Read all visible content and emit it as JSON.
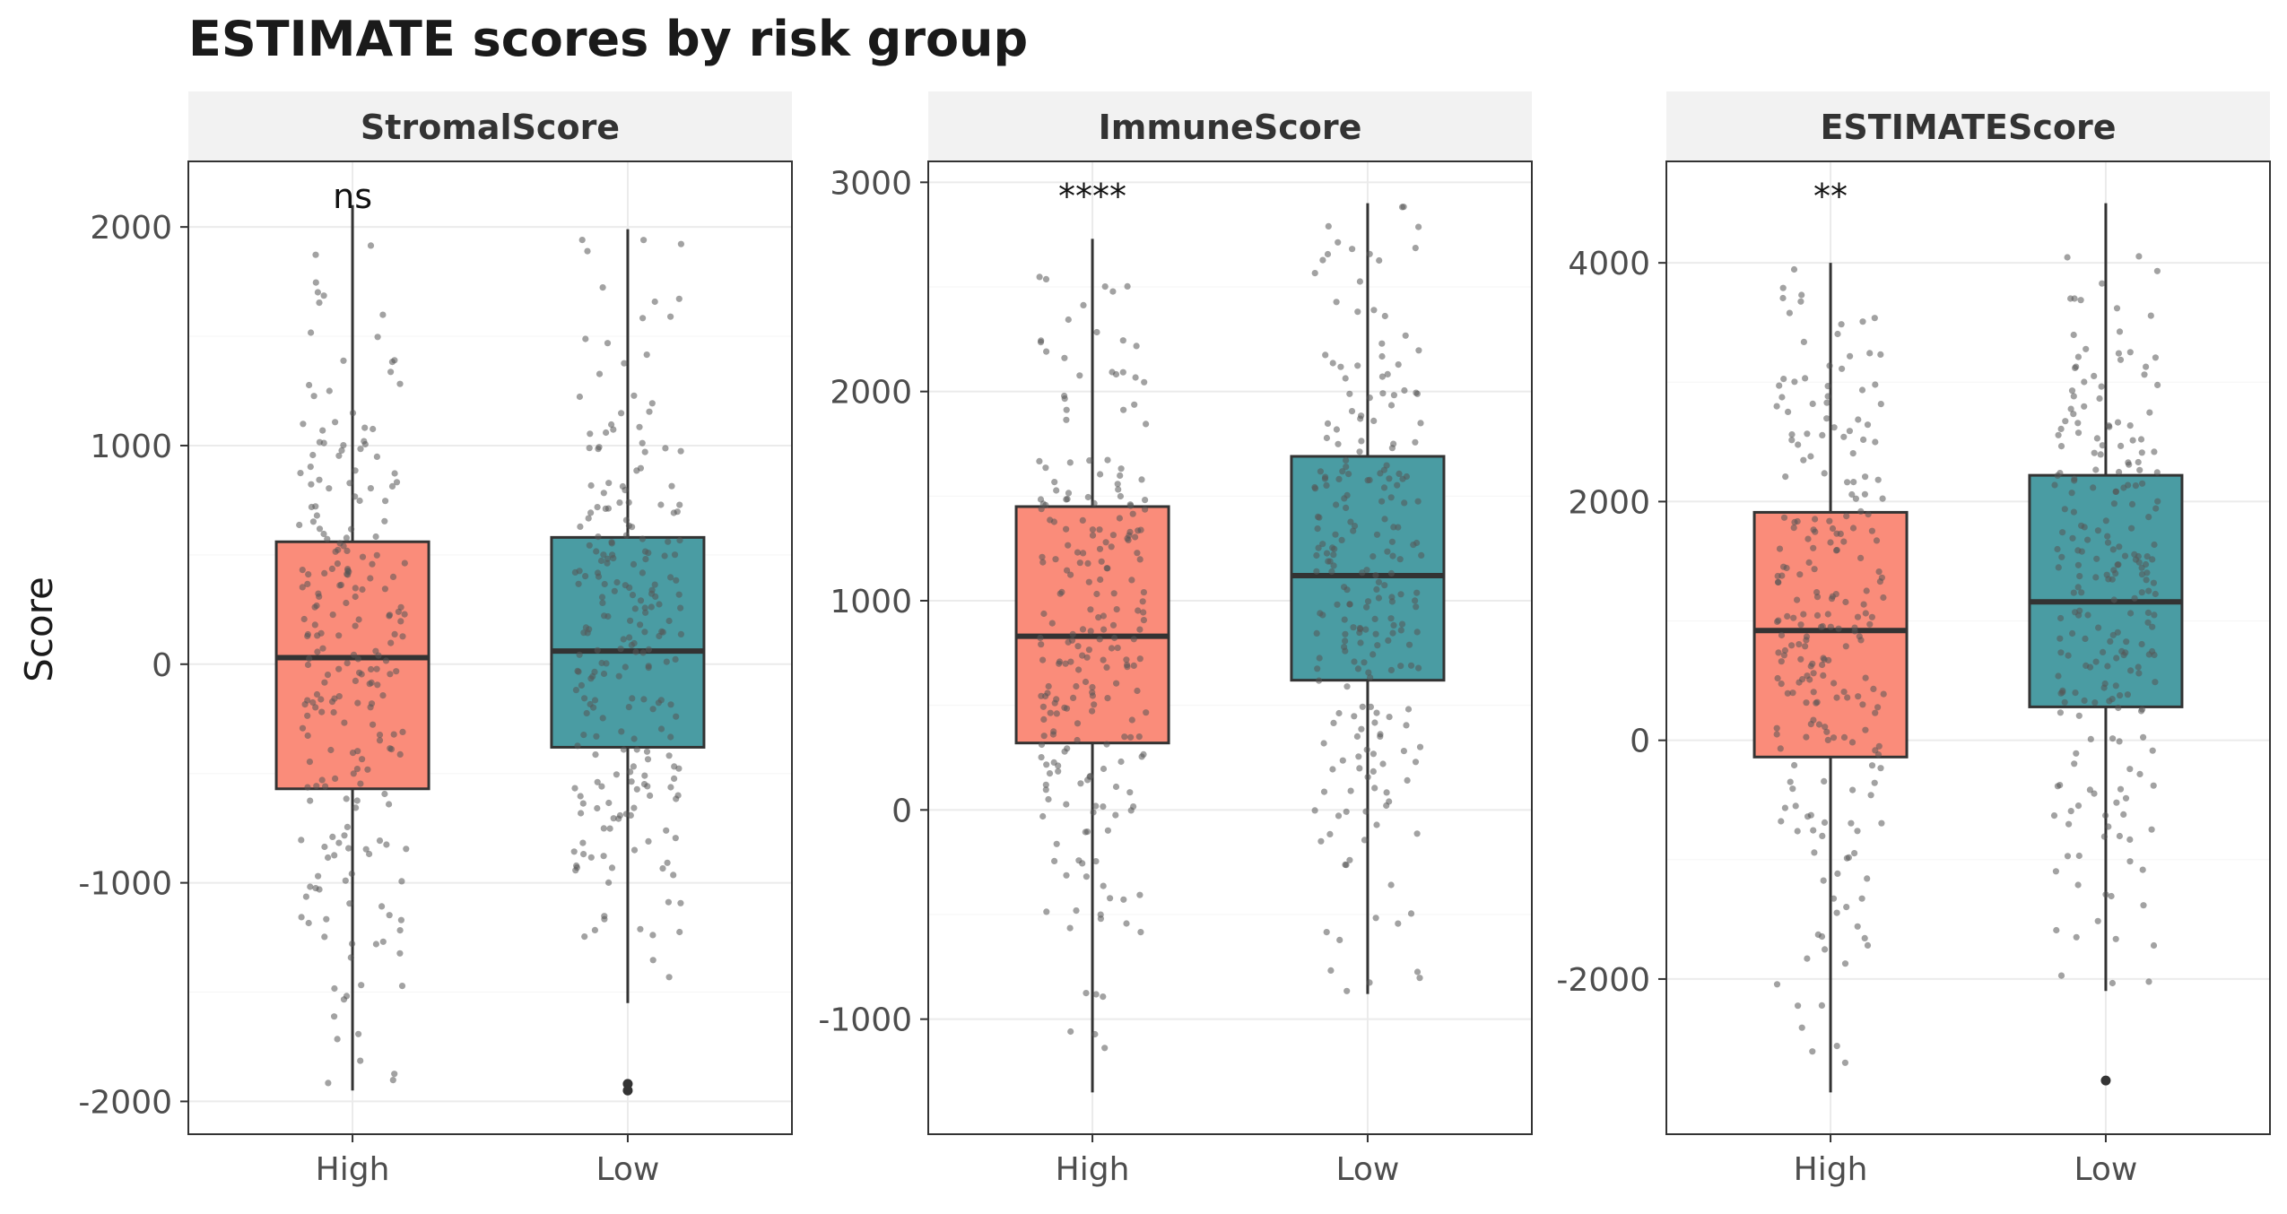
{
  "chart_data": {
    "type": "box",
    "title": "ESTIMATE scores by risk group",
    "ylabel": "Score",
    "xlabel": "",
    "categories": [
      "High",
      "Low"
    ],
    "colors": {
      "High": "#FA8C7A",
      "Low": "#4A9CA3",
      "point": "#555555",
      "outlier": "#333333",
      "strip_bg": "#F2F2F2",
      "panel_border": "#333333",
      "grid": "#EBEBEB"
    },
    "grid": true,
    "jitter_points": true,
    "panels": [
      {
        "name": "StromalScore",
        "significance": "ns",
        "ylim": [
          -2150,
          2300
        ],
        "yticks": [
          -2000,
          -1000,
          0,
          1000,
          2000
        ],
        "ytick_labels": [
          "-2000",
          "-1000",
          "0",
          "1000",
          "2000"
        ],
        "boxes": [
          {
            "group": "High",
            "whisker_low": -1950,
            "q1": -570,
            "median": 30,
            "q3": 560,
            "whisker_high": 2100,
            "outliers": []
          },
          {
            "group": "Low",
            "whisker_low": -1550,
            "q1": -380,
            "median": 60,
            "q3": 580,
            "whisker_high": 1990,
            "outliers": [
              -1920,
              -1950
            ]
          }
        ]
      },
      {
        "name": "ImmuneScore",
        "significance": "****",
        "ylim": [
          -1550,
          3100
        ],
        "yticks": [
          -1000,
          0,
          1000,
          2000,
          3000
        ],
        "ytick_labels": [
          "-1000",
          "0",
          "1000",
          "2000",
          "3000"
        ],
        "boxes": [
          {
            "group": "High",
            "whisker_low": -1350,
            "q1": 320,
            "median": 830,
            "q3": 1450,
            "whisker_high": 2730,
            "outliers": []
          },
          {
            "group": "Low",
            "whisker_low": -880,
            "q1": 620,
            "median": 1120,
            "q3": 1690,
            "whisker_high": 2900,
            "outliers": []
          }
        ]
      },
      {
        "name": "ESTIMATEScore",
        "significance": "**",
        "ylim": [
          -3300,
          4850
        ],
        "yticks": [
          -2000,
          0,
          2000,
          4000
        ],
        "ytick_labels": [
          "-2000",
          "0",
          "2000",
          "4000"
        ],
        "boxes": [
          {
            "group": "High",
            "whisker_low": -2950,
            "q1": -140,
            "median": 920,
            "q3": 1910,
            "whisker_high": 4000,
            "outliers": []
          },
          {
            "group": "Low",
            "whisker_low": -2100,
            "q1": 280,
            "median": 1160,
            "q3": 2220,
            "whisker_high": 4500,
            "outliers": [
              -2850
            ]
          }
        ]
      }
    ]
  }
}
